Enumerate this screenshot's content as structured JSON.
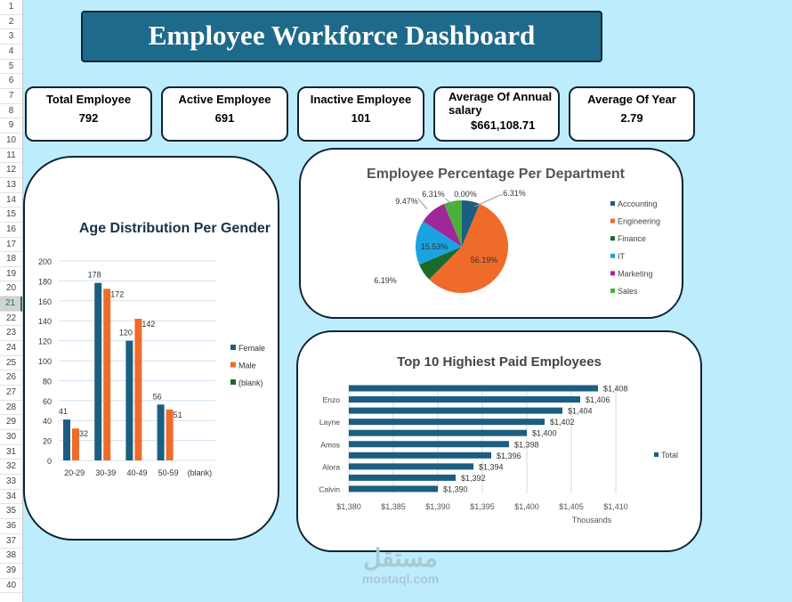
{
  "sheet": {
    "rows": [
      "1",
      "2",
      "3",
      "4",
      "5",
      "6",
      "7",
      "8",
      "9",
      "10",
      "11",
      "12",
      "13",
      "14",
      "15",
      "16",
      "17",
      "18",
      "19",
      "20",
      "21",
      "22",
      "23",
      "24",
      "25",
      "26",
      "27",
      "28",
      "29",
      "30",
      "31",
      "32",
      "33",
      "34",
      "35",
      "36",
      "37",
      "38",
      "39",
      "40"
    ],
    "selected_row": "21"
  },
  "title": "Employee Workforce Dashboard",
  "kpis": [
    {
      "label": "Total Employee",
      "value": "792"
    },
    {
      "label": "Active Employee",
      "value": "691"
    },
    {
      "label": "Inactive Employee",
      "value": "101"
    },
    {
      "label": "Average Of Annual salary",
      "value": "$661,108.71"
    },
    {
      "label": "Average Of Year",
      "value": "2.79"
    }
  ],
  "watermark": {
    "arabic": "مستقل",
    "latin": "mostaql.com"
  },
  "chart_data": [
    {
      "type": "bar",
      "title": "Age Distribution Per Gender",
      "categories": [
        "20-29",
        "30-39",
        "40-49",
        "50-59",
        "(blank)"
      ],
      "series": [
        {
          "name": "Female",
          "values": [
            41,
            178,
            120,
            56,
            null
          ],
          "color": "#1b5e80"
        },
        {
          "name": "Male",
          "values": [
            32,
            172,
            142,
            51,
            null
          ],
          "color": "#ee6b2a"
        },
        {
          "name": "(blank)",
          "values": [
            null,
            null,
            null,
            null,
            null
          ],
          "color": "#1a6b2a"
        }
      ],
      "ylim": [
        0,
        200
      ],
      "yticks": [
        "0",
        "20",
        "40",
        "60",
        "80",
        "100",
        "120",
        "140",
        "160",
        "180",
        "200"
      ],
      "grid": true,
      "legend": "right"
    },
    {
      "type": "pie",
      "title": "Employee Percentage Per Department",
      "slices": [
        {
          "name": "Accounting",
          "value": 6.31,
          "label": "6.31%",
          "color": "#1b5e80"
        },
        {
          "name": "Engineering",
          "value": 56.19,
          "label": "56.19%",
          "color": "#ee6b2a"
        },
        {
          "name": "Finance",
          "value": 6.19,
          "label": "6.19%",
          "color": "#1a6b2a"
        },
        {
          "name": "IT",
          "value": 15.53,
          "label": "15.53%",
          "color": "#1aa3e0"
        },
        {
          "name": "Marketing",
          "value": 9.47,
          "label": "9.47%",
          "color": "#a0279a"
        },
        {
          "name": "Sales",
          "value": 6.31,
          "label": "6.31%",
          "color": "#4caf3a"
        },
        {
          "name": "",
          "value": 0,
          "label": "0.00%",
          "color": "#999999"
        }
      ],
      "legend": "right"
    },
    {
      "type": "bar",
      "orientation": "horizontal",
      "title": "Top 10 Highiest Paid Employees",
      "categories": [
        "",
        "Enzo",
        "",
        "Layne",
        "",
        "Amos",
        "",
        "Alora",
        "",
        "Calvin"
      ],
      "values": [
        1408,
        1406,
        1404,
        1402,
        1400,
        1398,
        1396,
        1394,
        1392,
        1390
      ],
      "data_labels": [
        "$1,408",
        "$1,406",
        "$1,404",
        "$1,402",
        "$1,400",
        "$1,398",
        "$1,396",
        "$1,394",
        "$1,392",
        "$1,390"
      ],
      "xlim": [
        1380,
        1410
      ],
      "xticks": [
        "$1,380",
        "$1,385",
        "$1,390",
        "$1,395",
        "$1,400",
        "$1,405",
        "$1,410"
      ],
      "xlabel": "Thousands",
      "series_name": "Total",
      "color": "#1b5e80",
      "grid": true,
      "legend": "right"
    }
  ]
}
